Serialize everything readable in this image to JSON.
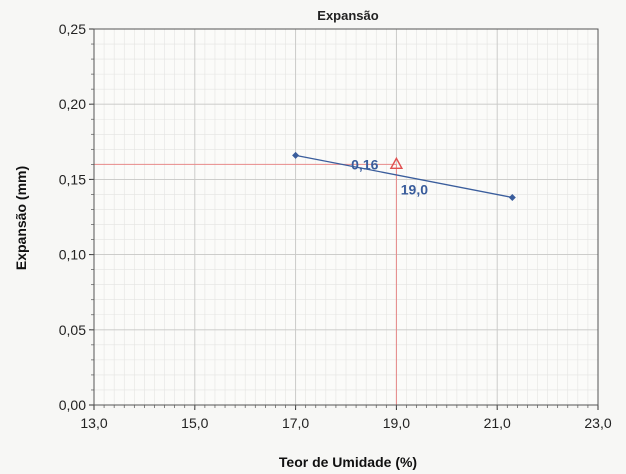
{
  "chart_data": {
    "type": "line",
    "title": "Expansão",
    "xlabel": "Teor de Umidade (%)",
    "ylabel": "Expansão (mm)",
    "xlim": [
      13.0,
      23.0
    ],
    "ylim": [
      0.0,
      0.25
    ],
    "x_ticks": [
      "13,0",
      "15,0",
      "17,0",
      "19,0",
      "21,0",
      "23,0"
    ],
    "y_ticks": [
      "0,00",
      "0,05",
      "0,10",
      "0,15",
      "0,20",
      "0,25"
    ],
    "grid": true,
    "series": [
      {
        "points": [
          {
            "x": 17.0,
            "y": 0.166
          },
          {
            "x": 21.3,
            "y": 0.138
          }
        ],
        "color": "#3a5d9c"
      }
    ],
    "optimum": {
      "x": 19.0,
      "y": 0.16,
      "x_label": "19,0",
      "y_label": "0,16",
      "marker": "triangle",
      "color": "#e05050"
    }
  }
}
